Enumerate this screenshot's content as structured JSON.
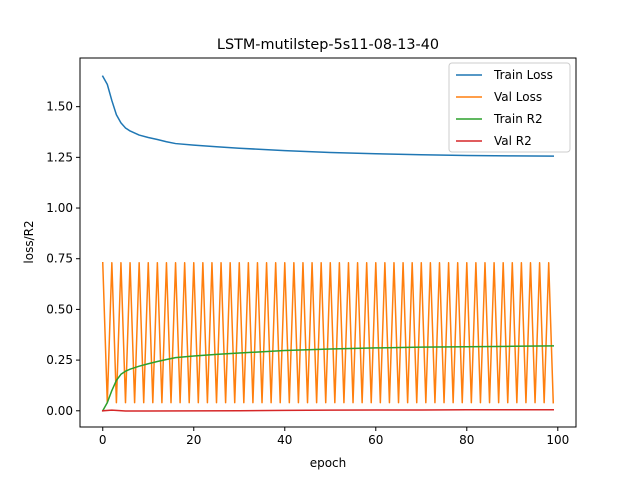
{
  "chart_data": {
    "type": "line",
    "title": "LSTM-mutilstep-5s11-08-13-40",
    "xlabel": "epoch",
    "ylabel": "loss/R2",
    "xlim": [
      -5,
      104
    ],
    "ylim": [
      -0.08,
      1.74
    ],
    "x_ticks": [
      0,
      20,
      40,
      60,
      80,
      100
    ],
    "x_tick_labels": [
      "0",
      "20",
      "40",
      "60",
      "80",
      "100"
    ],
    "y_ticks": [
      0.0,
      0.25,
      0.5,
      0.75,
      1.0,
      1.25,
      1.5
    ],
    "y_tick_labels": [
      "0.00",
      "0.25",
      "0.50",
      "0.75",
      "1.00",
      "1.25",
      "1.50"
    ],
    "grid": false,
    "legend_position": "top-right",
    "series": [
      {
        "name": "Train Loss",
        "color": "#1f77b4",
        "x": [
          0,
          1,
          2,
          3,
          4,
          5,
          6,
          8,
          10,
          12,
          14,
          16,
          20,
          25,
          30,
          40,
          50,
          60,
          70,
          80,
          90,
          99
        ],
        "y": [
          1.65,
          1.61,
          1.53,
          1.46,
          1.42,
          1.395,
          1.38,
          1.36,
          1.348,
          1.338,
          1.327,
          1.318,
          1.31,
          1.302,
          1.295,
          1.283,
          1.274,
          1.268,
          1.263,
          1.259,
          1.257,
          1.256
        ]
      },
      {
        "name": "Val Loss",
        "color": "#ff7f0e",
        "pattern": "alternating",
        "x_start": 0,
        "x_end": 99,
        "even_value": 0.73,
        "odd_value": 0.04
      },
      {
        "name": "Train R2",
        "color": "#2ca02c",
        "x": [
          0,
          1,
          2,
          3,
          4,
          5,
          6,
          8,
          10,
          12,
          14,
          16,
          20,
          25,
          30,
          40,
          50,
          60,
          70,
          80,
          90,
          99
        ],
        "y": [
          0.0,
          0.04,
          0.1,
          0.15,
          0.18,
          0.195,
          0.205,
          0.22,
          0.232,
          0.243,
          0.253,
          0.262,
          0.27,
          0.278,
          0.285,
          0.297,
          0.305,
          0.31,
          0.314,
          0.316,
          0.318,
          0.32
        ]
      },
      {
        "name": "Val R2",
        "color": "#d62728",
        "x": [
          0,
          2,
          5,
          10,
          20,
          30,
          40,
          50,
          60,
          70,
          80,
          90,
          99
        ],
        "y": [
          0.0,
          0.003,
          -0.001,
          -0.001,
          -0.0005,
          0.0,
          0.002,
          0.003,
          0.004,
          0.004,
          0.005,
          0.005,
          0.005
        ]
      }
    ]
  }
}
